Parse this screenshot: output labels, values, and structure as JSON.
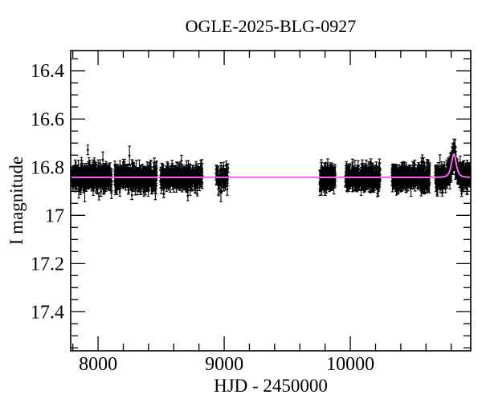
{
  "chart_data": {
    "type": "scatter",
    "title": "OGLE-2025-BLG-0927",
    "xlabel": "HJD - 2450000",
    "ylabel": "I magnitude",
    "xlim": [
      7783,
      10955
    ],
    "ylim": [
      16.316,
      17.562
    ],
    "y_inverted": true,
    "x_ticks": [
      8000,
      9000,
      10000
    ],
    "x_tick_labels": [
      "8000",
      "9000",
      "10000"
    ],
    "x_minor_step": 200,
    "y_ticks": [
      16.4,
      16.6,
      16.8,
      17.0,
      17.2,
      17.4
    ],
    "y_tick_labels": [
      "16.4",
      "16.6",
      "16.8",
      "17",
      "17.2",
      "17.4"
    ],
    "y_minor_step": 0.05,
    "baseline_mag": 16.842,
    "model": {
      "type": "paczynski",
      "t0": 10821,
      "tE": 16,
      "u0": 1.72,
      "peak_mag": 16.745
    },
    "seasons": [
      {
        "start": 7789,
        "end": 8108,
        "n": 420,
        "sigma": 0.02
      },
      {
        "start": 8133,
        "end": 8465,
        "n": 420,
        "sigma": 0.02
      },
      {
        "start": 8496,
        "end": 8828,
        "n": 400,
        "sigma": 0.02
      },
      {
        "start": 8936,
        "end": 9031,
        "n": 60,
        "sigma": 0.018
      },
      {
        "start": 9758,
        "end": 9879,
        "n": 170,
        "sigma": 0.019
      },
      {
        "start": 9961,
        "end": 10235,
        "n": 340,
        "sigma": 0.02
      },
      {
        "start": 10331,
        "end": 10630,
        "n": 380,
        "sigma": 0.02
      },
      {
        "start": 10675,
        "end": 10949,
        "n": 380,
        "sigma": 0.02
      }
    ],
    "outliers": [
      {
        "t": 8974,
        "mag": 16.9,
        "err": 0.043
      }
    ],
    "colors": {
      "points": "#000000",
      "model": "#f763f3",
      "frame": "#000000",
      "background": "#ffffff"
    },
    "legend": null,
    "grid": false
  }
}
